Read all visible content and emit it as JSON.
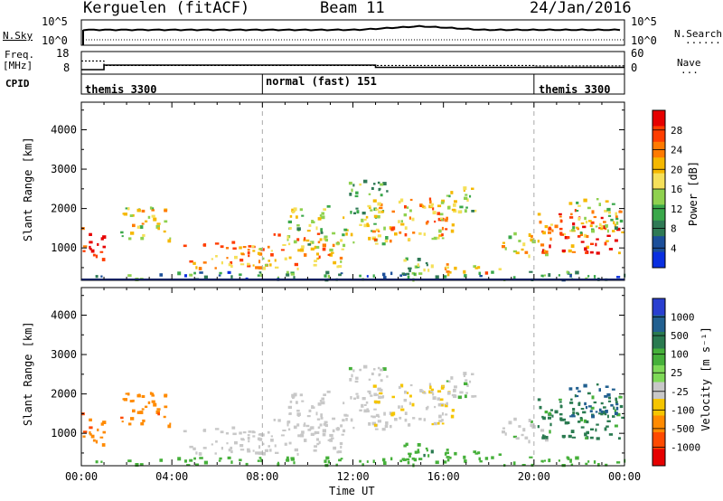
{
  "header": {
    "title_left": "Kerguelen (fitACF)",
    "title_center": "Beam 11",
    "title_right": "24/Jan/2016"
  },
  "sky_panel": {
    "label": "N.Sky",
    "left_ticks": [
      "10^5",
      "10^0"
    ],
    "right_ticks": [
      "10^5",
      "10^0"
    ],
    "right_label": "N.Search"
  },
  "freq_panel": {
    "label_line1": "Freq.",
    "label_line2": "[MHz]",
    "left_ticks": [
      "18",
      "8"
    ],
    "right_ticks": [
      "60",
      "0"
    ],
    "right_label": "Nave"
  },
  "cpid": {
    "label": "CPID",
    "modes": [
      "themis 3300",
      "normal (fast) 151",
      "themis 3300"
    ]
  },
  "power_panel": {
    "ylabel": "Slant Range [km]",
    "yticks": [
      "4000",
      "3000",
      "2000",
      "1000"
    ],
    "colorbar_label": "Power [dB]",
    "colorbar_ticks": [
      "28",
      "24",
      "20",
      "16",
      "12",
      "8",
      "4"
    ],
    "colorbar_colors": [
      "#e60000",
      "#ff3d00",
      "#ff7a00",
      "#f5b800",
      "#f5e05a",
      "#8fd14f",
      "#3aa84a",
      "#2f7a55",
      "#1c4f9a",
      "#0a2fe0"
    ]
  },
  "velocity_panel": {
    "ylabel": "Slant Range [km]",
    "yticks": [
      "4000",
      "3000",
      "2000",
      "1000"
    ],
    "colorbar_label": "Velocity [m s⁻¹]",
    "colorbar_ticks": [
      "1000",
      "500",
      "100",
      "25",
      "-25",
      "-100",
      "-500",
      "-1000"
    ],
    "colorbar_colors": [
      "#2a3fd0",
      "#226090",
      "#2a7a50",
      "#46b03a",
      "#7ed957",
      "#c8c8c8",
      "#f5c500",
      "#ff8a00",
      "#ff4a00",
      "#e60000"
    ]
  },
  "time_axis": {
    "xlabel": "Time UT",
    "ticks": [
      "00:00",
      "04:00",
      "08:00",
      "12:00",
      "16:00",
      "20:00",
      "00:00"
    ]
  },
  "chart_data": {
    "type": "heatmap",
    "x_unit": "hours UT",
    "xlim": [
      0,
      24
    ],
    "ylim": [
      200,
      4700
    ],
    "mode_changes_ut": [
      1,
      8,
      13,
      20
    ],
    "freq_mhz": [
      {
        "from": 0,
        "to": 1,
        "value": 10
      },
      {
        "from": 1,
        "to": 13,
        "value": 12
      },
      {
        "from": 13,
        "to": 24,
        "value": 11
      }
    ],
    "nave": [
      {
        "from": 0,
        "to": 1,
        "value": 35
      },
      {
        "from": 1,
        "to": 20,
        "value": 23
      },
      {
        "from": 20,
        "to": 24,
        "value": 22
      }
    ],
    "scatter_regions": [
      {
        "t0": 0.0,
        "t1": 1.0,
        "r0": 700,
        "r1": 1600,
        "power": 27,
        "velocity": -400
      },
      {
        "t0": 1.7,
        "t1": 3.9,
        "r0": 1200,
        "r1": 2100,
        "power": 16,
        "velocity": -350
      },
      {
        "t0": 4.5,
        "t1": 8.0,
        "r0": 500,
        "r1": 1200,
        "power": 22,
        "velocity": -5
      },
      {
        "t0": 7.8,
        "t1": 11.5,
        "r0": 500,
        "r1": 1400,
        "power": 21,
        "velocity": 0
      },
      {
        "t0": 9.0,
        "t1": 13.5,
        "r0": 1100,
        "r1": 2100,
        "power": 14,
        "velocity": 5
      },
      {
        "t0": 11.5,
        "t1": 13.5,
        "r0": 2300,
        "r1": 2800,
        "power": 12,
        "velocity": 10
      },
      {
        "t0": 12.5,
        "t1": 16.5,
        "r0": 1200,
        "r1": 2300,
        "power": 20,
        "velocity": -20
      },
      {
        "t0": 16.0,
        "t1": 17.5,
        "r0": 1900,
        "r1": 2600,
        "power": 14,
        "velocity": 15
      },
      {
        "t0": 14.0,
        "t1": 15.5,
        "r0": 400,
        "r1": 900,
        "power": 12,
        "velocity": 80
      },
      {
        "t0": 16.0,
        "t1": 18.5,
        "r0": 350,
        "r1": 650,
        "power": 20,
        "velocity": 60
      },
      {
        "t0": 18.5,
        "t1": 20.5,
        "r0": 800,
        "r1": 1400,
        "power": 17,
        "velocity": 10
      },
      {
        "t0": 20.0,
        "t1": 24.0,
        "r0": 900,
        "r1": 2000,
        "power": 25,
        "velocity": 150
      },
      {
        "t0": 21.5,
        "t1": 24.0,
        "r0": 1400,
        "r1": 2300,
        "power": 14,
        "velocity": 600
      },
      {
        "t0": 0.0,
        "t1": 24.0,
        "r0": 220,
        "r1": 420,
        "power": 8,
        "velocity": 50
      }
    ]
  }
}
